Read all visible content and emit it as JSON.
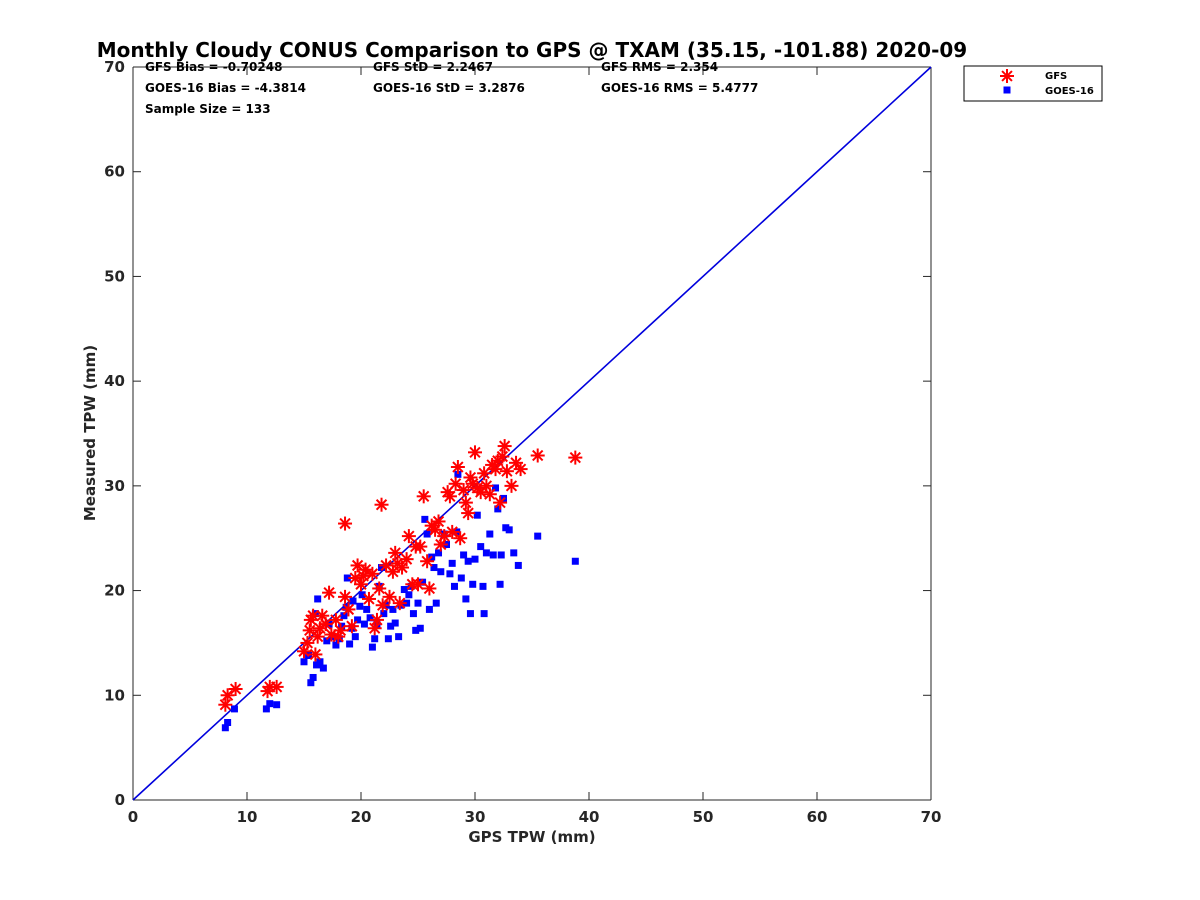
{
  "chart_data": {
    "type": "scatter",
    "title": "Monthly Cloudy CONUS Comparison to GPS @ TXAM (35.15, -101.88) 2020-09",
    "xlabel": "GPS TPW (mm)",
    "ylabel": "Measured TPW (mm)",
    "xlim": [
      0,
      70
    ],
    "ylim": [
      0,
      70
    ],
    "xticks": [
      "0",
      "10",
      "20",
      "30",
      "40",
      "50",
      "60",
      "70"
    ],
    "yticks": [
      "0",
      "10",
      "20",
      "30",
      "40",
      "50",
      "60",
      "70"
    ],
    "grid": false,
    "legend_position": "top-right, outside plot area",
    "stats": [
      "GFS Bias = -0.70248",
      "GFS StD = 2.2467",
      "GFS RMS = 2.354",
      "GOES-16 Bias = -4.3814",
      "GOES-16 StD = 3.2876",
      "GOES-16 RMS = 5.4777",
      "Sample Size = 133"
    ],
    "reference_line": {
      "x": [
        0,
        70
      ],
      "y": [
        0,
        70
      ],
      "color": "#0000dd"
    },
    "series": [
      {
        "name": "GFS",
        "marker": "asterisk",
        "color": "#ff0000",
        "points": [
          [
            8.1,
            9.1
          ],
          [
            8.3,
            10.0
          ],
          [
            9.0,
            10.6
          ],
          [
            11.8,
            10.4
          ],
          [
            12.0,
            10.8
          ],
          [
            12.6,
            10.8
          ],
          [
            15.0,
            14.2
          ],
          [
            15.3,
            15.0
          ],
          [
            15.5,
            16.2
          ],
          [
            15.6,
            17.2
          ],
          [
            15.8,
            17.6
          ],
          [
            16.0,
            13.9
          ],
          [
            16.2,
            15.6
          ],
          [
            16.4,
            16.4
          ],
          [
            16.6,
            17.6
          ],
          [
            16.9,
            16.8
          ],
          [
            17.2,
            19.8
          ],
          [
            17.4,
            15.8
          ],
          [
            17.8,
            17.2
          ],
          [
            18.0,
            15.6
          ],
          [
            18.2,
            16.2
          ],
          [
            18.6,
            26.4
          ],
          [
            18.6,
            19.4
          ],
          [
            18.9,
            18.2
          ],
          [
            19.2,
            16.6
          ],
          [
            19.5,
            21.2
          ],
          [
            19.7,
            22.4
          ],
          [
            20.0,
            20.6
          ],
          [
            20.2,
            21.4
          ],
          [
            20.4,
            22.0
          ],
          [
            20.7,
            19.2
          ],
          [
            21.0,
            21.6
          ],
          [
            21.2,
            16.4
          ],
          [
            21.4,
            17.2
          ],
          [
            21.6,
            20.2
          ],
          [
            21.8,
            28.2
          ],
          [
            21.9,
            18.6
          ],
          [
            22.2,
            22.4
          ],
          [
            22.5,
            19.4
          ],
          [
            22.8,
            21.8
          ],
          [
            23.0,
            23.6
          ],
          [
            23.2,
            22.6
          ],
          [
            23.4,
            18.8
          ],
          [
            23.6,
            22.2
          ],
          [
            24.0,
            23.0
          ],
          [
            24.2,
            25.2
          ],
          [
            24.5,
            20.6
          ],
          [
            24.8,
            24.2
          ],
          [
            25.0,
            20.6
          ],
          [
            25.2,
            24.2
          ],
          [
            25.5,
            29.0
          ],
          [
            25.8,
            22.8
          ],
          [
            26.0,
            20.2
          ],
          [
            26.2,
            26.2
          ],
          [
            26.5,
            25.8
          ],
          [
            26.8,
            26.6
          ],
          [
            27.0,
            24.4
          ],
          [
            27.3,
            25.2
          ],
          [
            27.6,
            29.4
          ],
          [
            27.8,
            29.0
          ],
          [
            28.0,
            25.6
          ],
          [
            28.3,
            30.2
          ],
          [
            28.5,
            31.8
          ],
          [
            28.7,
            25.0
          ],
          [
            29.0,
            29.6
          ],
          [
            29.2,
            28.4
          ],
          [
            29.4,
            27.4
          ],
          [
            29.6,
            30.8
          ],
          [
            29.8,
            30.2
          ],
          [
            30.0,
            33.2
          ],
          [
            30.2,
            29.8
          ],
          [
            30.5,
            29.4
          ],
          [
            30.8,
            31.2
          ],
          [
            31.0,
            30.0
          ],
          [
            31.3,
            29.2
          ],
          [
            31.5,
            32.0
          ],
          [
            31.8,
            31.6
          ],
          [
            32.0,
            32.4
          ],
          [
            32.2,
            28.4
          ],
          [
            32.4,
            32.8
          ],
          [
            32.6,
            33.8
          ],
          [
            32.8,
            31.4
          ],
          [
            33.2,
            30.0
          ],
          [
            33.6,
            32.2
          ],
          [
            34.0,
            31.6
          ],
          [
            35.5,
            32.9
          ],
          [
            38.8,
            32.7
          ]
        ]
      },
      {
        "name": "GOES-16",
        "marker": "square",
        "color": "#0000ff",
        "points": [
          [
            8.1,
            6.9
          ],
          [
            8.3,
            7.4
          ],
          [
            8.9,
            8.7
          ],
          [
            11.7,
            8.7
          ],
          [
            12.0,
            9.2
          ],
          [
            12.6,
            9.1
          ],
          [
            15.0,
            13.2
          ],
          [
            15.4,
            13.8
          ],
          [
            15.6,
            11.2
          ],
          [
            15.8,
            11.7
          ],
          [
            16.0,
            17.8
          ],
          [
            16.1,
            12.9
          ],
          [
            16.2,
            19.2
          ],
          [
            16.4,
            13.2
          ],
          [
            16.7,
            12.6
          ],
          [
            17.0,
            15.2
          ],
          [
            17.2,
            16.8
          ],
          [
            17.5,
            15.6
          ],
          [
            17.8,
            14.8
          ],
          [
            18.1,
            15.4
          ],
          [
            18.3,
            16.6
          ],
          [
            18.5,
            17.6
          ],
          [
            18.7,
            18.4
          ],
          [
            18.8,
            21.2
          ],
          [
            19.0,
            14.9
          ],
          [
            19.2,
            16.4
          ],
          [
            19.3,
            19.0
          ],
          [
            19.5,
            15.6
          ],
          [
            19.7,
            17.2
          ],
          [
            19.9,
            18.5
          ],
          [
            20.1,
            19.6
          ],
          [
            20.3,
            16.8
          ],
          [
            20.5,
            18.2
          ],
          [
            20.8,
            17.4
          ],
          [
            21.0,
            14.6
          ],
          [
            21.2,
            15.4
          ],
          [
            21.4,
            16.8
          ],
          [
            21.6,
            20.4
          ],
          [
            21.8,
            22.2
          ],
          [
            22.0,
            17.8
          ],
          [
            22.2,
            18.6
          ],
          [
            22.4,
            15.4
          ],
          [
            22.6,
            16.6
          ],
          [
            22.8,
            18.2
          ],
          [
            23.0,
            16.9
          ],
          [
            23.3,
            15.6
          ],
          [
            23.5,
            18.6
          ],
          [
            23.8,
            20.1
          ],
          [
            24.0,
            18.8
          ],
          [
            24.2,
            19.6
          ],
          [
            24.4,
            20.4
          ],
          [
            24.6,
            17.8
          ],
          [
            24.8,
            16.2
          ],
          [
            25.0,
            18.8
          ],
          [
            25.2,
            16.4
          ],
          [
            25.4,
            20.8
          ],
          [
            25.6,
            26.8
          ],
          [
            25.8,
            25.4
          ],
          [
            26.0,
            18.2
          ],
          [
            26.2,
            23.2
          ],
          [
            26.4,
            22.2
          ],
          [
            26.6,
            18.8
          ],
          [
            26.8,
            23.6
          ],
          [
            27.0,
            21.8
          ],
          [
            27.3,
            25.4
          ],
          [
            27.5,
            24.4
          ],
          [
            27.8,
            21.6
          ],
          [
            28.0,
            22.6
          ],
          [
            28.2,
            20.4
          ],
          [
            28.4,
            25.6
          ],
          [
            28.5,
            31.1
          ],
          [
            28.8,
            21.2
          ],
          [
            29.0,
            23.4
          ],
          [
            29.2,
            19.2
          ],
          [
            29.4,
            22.8
          ],
          [
            29.6,
            17.8
          ],
          [
            29.8,
            20.6
          ],
          [
            30.0,
            23.0
          ],
          [
            30.2,
            27.2
          ],
          [
            30.5,
            24.2
          ],
          [
            30.7,
            20.4
          ],
          [
            30.8,
            17.8
          ],
          [
            31.0,
            23.6
          ],
          [
            31.3,
            25.4
          ],
          [
            31.6,
            23.4
          ],
          [
            31.8,
            29.8
          ],
          [
            32.0,
            27.8
          ],
          [
            32.2,
            20.6
          ],
          [
            32.3,
            23.4
          ],
          [
            32.5,
            28.8
          ],
          [
            32.7,
            26.0
          ],
          [
            33.0,
            25.8
          ],
          [
            33.4,
            23.6
          ],
          [
            33.8,
            22.4
          ],
          [
            35.5,
            25.2
          ],
          [
            38.8,
            22.8
          ]
        ]
      }
    ]
  }
}
